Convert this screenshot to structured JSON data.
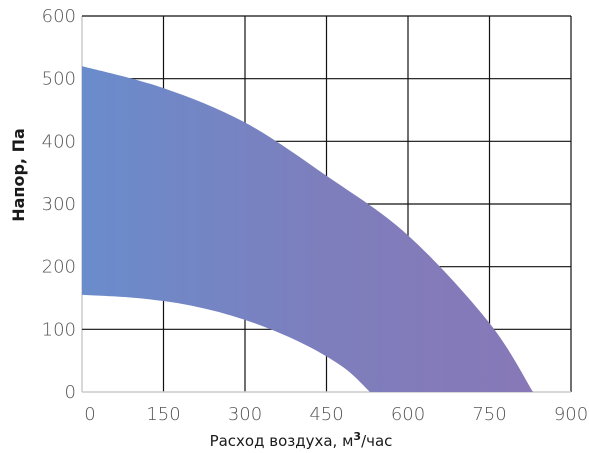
{
  "chart_data": {
    "type": "area",
    "xlabel": "Расход воздуха, м³/час",
    "xlabel_main": "Расход воздуха, м",
    "xlabel_sup": "3",
    "xlabel_tail": "/час",
    "ylabel": "Напор, Па",
    "xlim": [
      0,
      900
    ],
    "ylim": [
      0,
      600
    ],
    "x_ticks": [
      "0",
      "150",
      "300",
      "450",
      "600",
      "750",
      "900"
    ],
    "y_ticks": [
      "0",
      "100",
      "200",
      "300",
      "400",
      "500",
      "600"
    ],
    "grid": true,
    "series": [
      {
        "role": "upper-boundary",
        "x": [
          0,
          150,
          300,
          450,
          600,
          750,
          830
        ],
        "y": [
          520,
          485,
          430,
          345,
          250,
          110,
          0
        ]
      },
      {
        "role": "lower-boundary",
        "x": [
          0,
          100,
          200,
          300,
          400,
          480,
          530
        ],
        "y": [
          155,
          150,
          138,
          115,
          80,
          40,
          0
        ]
      }
    ],
    "fill_gradient": [
      "#6a8ccc",
      "#7e7ebc",
      "#8878b8"
    ]
  }
}
